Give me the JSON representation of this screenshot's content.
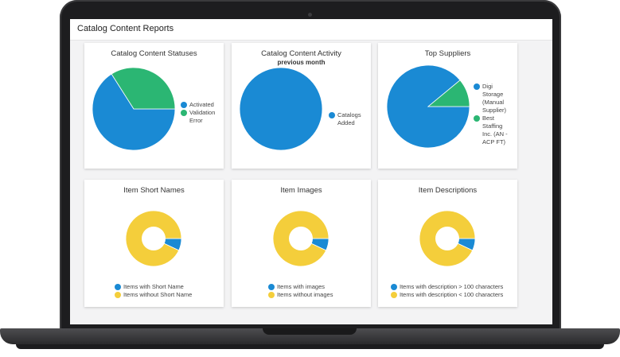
{
  "page_title": "Catalog Content Reports",
  "colors": {
    "blue": "#1a8ad4",
    "green": "#2bb673",
    "yellow": "#f4ce3b"
  },
  "cards": [
    {
      "title": "Catalog Content Statuses",
      "subtitle": "",
      "legend": [
        "Activated",
        "Validation Error"
      ]
    },
    {
      "title": "Catalog Content Activity",
      "subtitle": "previous month",
      "legend": [
        "Catalogs Added"
      ]
    },
    {
      "title": "Top Suppliers",
      "subtitle": "",
      "legend": [
        "Digi Storage (Manual Supplier)",
        "Best Staffing Inc. (AN - ACP FT)"
      ]
    },
    {
      "title": "Item Short Names",
      "subtitle": "",
      "legend": [
        "Items with Short Name",
        "Items without Short Name"
      ]
    },
    {
      "title": "Item Images",
      "subtitle": "",
      "legend": [
        "Items with images",
        "Items without images"
      ]
    },
    {
      "title": "Item Descriptions",
      "subtitle": "",
      "legend": [
        "Items with description > 100 characters",
        "Items with description < 100 characters"
      ]
    }
  ],
  "chart_data": [
    {
      "type": "pie",
      "categories": [
        "Activated",
        "Validation Error"
      ],
      "values": [
        66,
        34
      ]
    },
    {
      "type": "pie",
      "categories": [
        "Catalogs Added"
      ],
      "values": [
        100
      ]
    },
    {
      "type": "pie",
      "categories": [
        "Digi Storage (Manual Supplier)",
        "Best Staffing Inc. (AN - ACP FT)"
      ],
      "values": [
        89,
        11
      ]
    },
    {
      "type": "pie",
      "categories": [
        "Items with Short Name",
        "Items without Short Name"
      ],
      "values": [
        7,
        93
      ],
      "donut": true
    },
    {
      "type": "pie",
      "categories": [
        "Items with images",
        "Items without images"
      ],
      "values": [
        7,
        93
      ],
      "donut": true
    },
    {
      "type": "pie",
      "categories": [
        "Items with description > 100 characters",
        "Items with description < 100 characters"
      ],
      "values": [
        7,
        93
      ],
      "donut": true
    }
  ]
}
